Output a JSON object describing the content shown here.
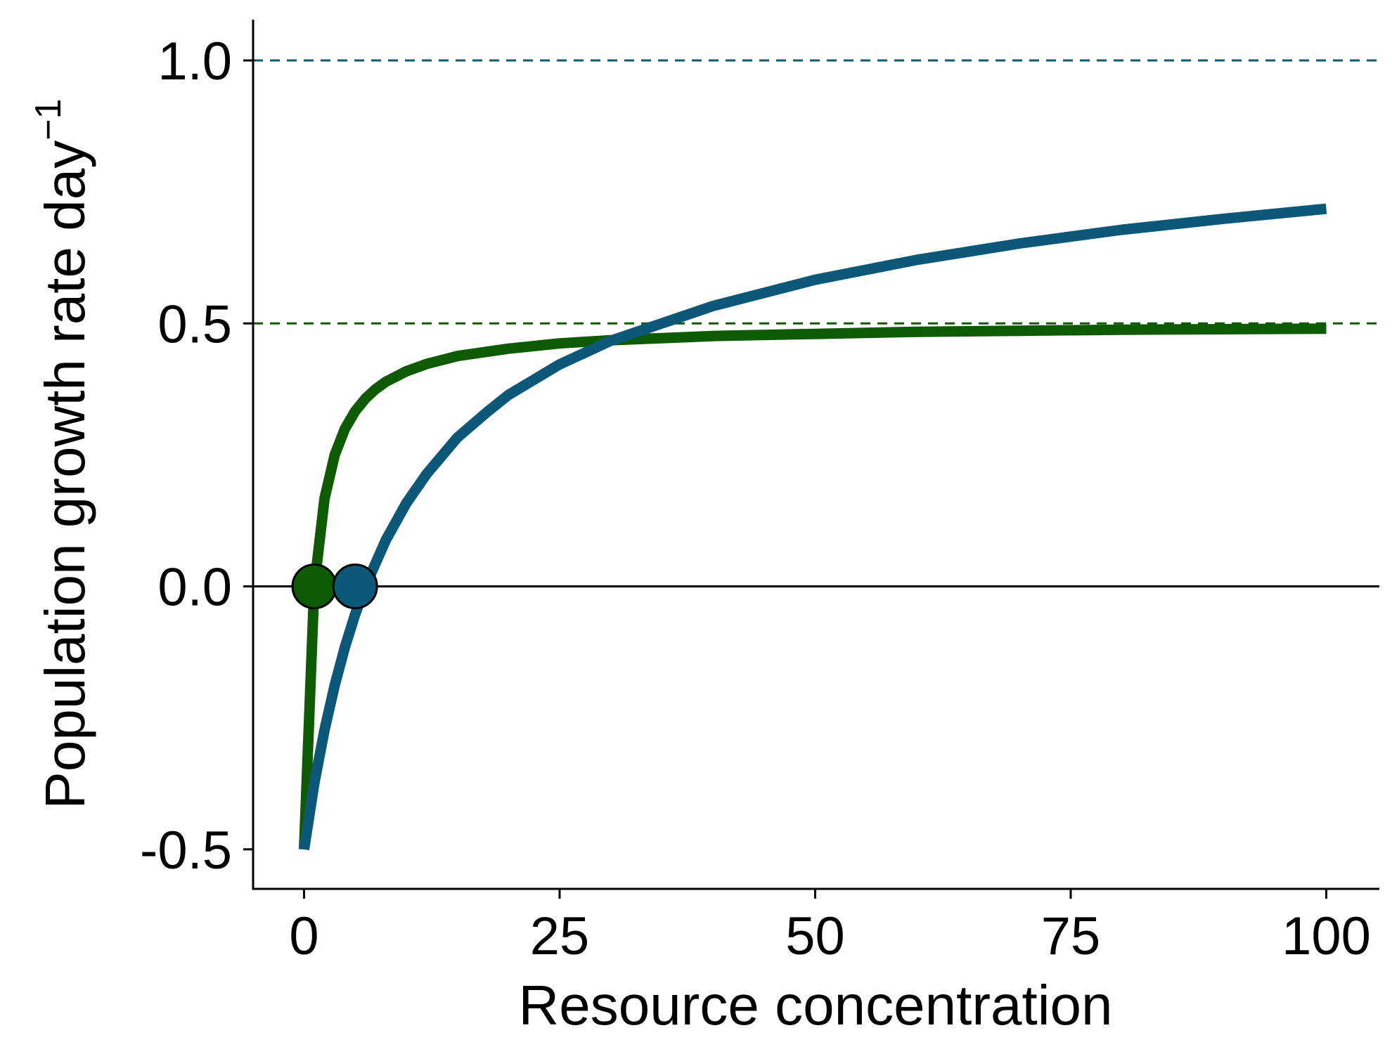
{
  "chart_data": {
    "type": "line",
    "title": "",
    "xlabel": "Resource concentration",
    "ylabel_main": "Population growth rate day",
    "ylabel_sup": "−1",
    "xlim": [
      -5,
      105
    ],
    "ylim": [
      -0.575,
      1.08
    ],
    "xticks": [
      0,
      25,
      50,
      75,
      100
    ],
    "xtick_labels": [
      "0",
      "25",
      "50",
      "75",
      "100"
    ],
    "yticks": [
      -0.5,
      0.0,
      0.5,
      1.0
    ],
    "ytick_labels": [
      "-0.5",
      "0.0",
      "0.5",
      "1.0"
    ],
    "grid": false,
    "horizontal_line": 0.0,
    "series": [
      {
        "color": "#0f5a04",
        "x": [
          0,
          1,
          2,
          3,
          4,
          5,
          6,
          7,
          8,
          10,
          12,
          15,
          20,
          25,
          30,
          40,
          50,
          60,
          70,
          80,
          90,
          100
        ],
        "y": [
          -0.5,
          0.0,
          0.167,
          0.25,
          0.3,
          0.333,
          0.357,
          0.375,
          0.389,
          0.409,
          0.423,
          0.438,
          0.452,
          0.462,
          0.468,
          0.476,
          0.48,
          0.484,
          0.486,
          0.488,
          0.489,
          0.49
        ],
        "asymptote": 0.5,
        "root": 1.0
      },
      {
        "color": "#0d5878",
        "x": [
          0,
          1,
          2,
          3,
          4,
          5,
          6,
          8,
          10,
          12,
          15,
          18,
          20,
          25,
          30,
          40,
          50,
          60,
          70,
          80,
          90,
          100
        ],
        "y": [
          -0.5,
          -0.375,
          -0.273,
          -0.188,
          -0.115,
          -0.053,
          0.0,
          0.088,
          0.158,
          0.214,
          0.283,
          0.333,
          0.364,
          0.422,
          0.467,
          0.533,
          0.583,
          0.621,
          0.652,
          0.678,
          0.699,
          0.718
        ],
        "asymptote": 1.0,
        "root": 5.0
      }
    ]
  }
}
